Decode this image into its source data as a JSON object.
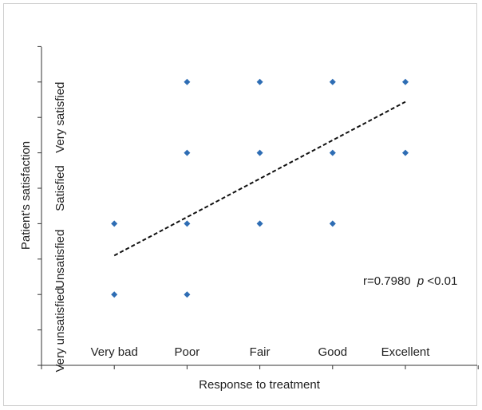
{
  "chart_data": {
    "type": "scatter",
    "xlabel": "Response to treatment",
    "ylabel": "Patient's satisfaction",
    "x_categories": [
      "Very bad",
      "Poor",
      "Fair",
      "Good",
      "Excellent"
    ],
    "y_categories": [
      "Very unsatisfied",
      "Unsatisfied",
      "Satisfied",
      "Very satisfied"
    ],
    "points": [
      {
        "x": 1,
        "y": 1
      },
      {
        "x": 1,
        "y": 2
      },
      {
        "x": 2,
        "y": 1
      },
      {
        "x": 2,
        "y": 2
      },
      {
        "x": 2,
        "y": 3
      },
      {
        "x": 2,
        "y": 4
      },
      {
        "x": 3,
        "y": 2
      },
      {
        "x": 3,
        "y": 3
      },
      {
        "x": 3,
        "y": 4
      },
      {
        "x": 4,
        "y": 2
      },
      {
        "x": 4,
        "y": 3
      },
      {
        "x": 4,
        "y": 4
      },
      {
        "x": 5,
        "y": 3
      },
      {
        "x": 5,
        "y": 4
      }
    ],
    "trendline": {
      "x": [
        1,
        5
      ],
      "y": [
        1.55,
        3.72
      ]
    },
    "xlim": [
      0,
      6
    ],
    "ylim": [
      0,
      4.5
    ],
    "annotation": {
      "text": "r=0.7980",
      "p_label": "p",
      "p_value": "<0.01"
    },
    "marker_color": "#2e6db4",
    "grid": false
  }
}
